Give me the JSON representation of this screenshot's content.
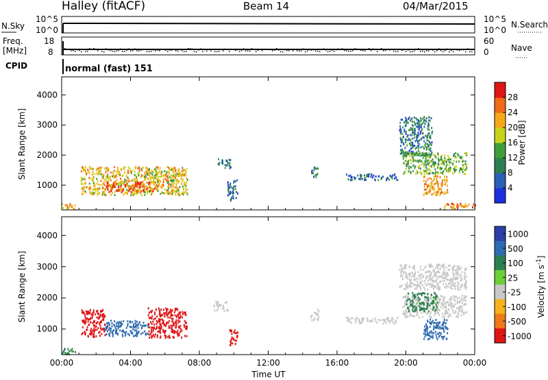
{
  "header": {
    "station": "Halley (fitACF)",
    "beam": "Beam 14",
    "date": "04/Mar/2015"
  },
  "strips": {
    "nsky_label": "N.Sky",
    "nsky_ticks": [
      "10^5",
      "10^0"
    ],
    "nsearch_label": "N.Search",
    "nsearch_ticks": [
      "10^5",
      "10^0"
    ],
    "freq_label": "Freq.",
    "freq_unit": "[MHz]",
    "freq_ticks": [
      "18",
      "8"
    ],
    "nave_label": "Nave",
    "nave_ticks": [
      "60",
      "0"
    ],
    "cpid_label": "CPID",
    "cpid_value": "normal (fast) 151"
  },
  "chart_data": [
    {
      "type": "heatmap",
      "panel": "power",
      "ylabel": "Slant Range [km]",
      "xlabel": "Time UT",
      "x_ticks": [
        "00:00",
        "04:00",
        "08:00",
        "12:00",
        "16:00",
        "20:00",
        "00:00"
      ],
      "y_ticks": [
        "1000",
        "2000",
        "3000",
        "4000"
      ],
      "y_ticks_values": [
        1000,
        2000,
        3000,
        4000
      ],
      "ylim": [
        180,
        4600
      ],
      "colorbar": {
        "label": "Power [dB]",
        "ticks": [
          "4",
          "8",
          "12",
          "16",
          "20",
          "24",
          "28"
        ],
        "ticks_values": [
          4,
          8,
          12,
          16,
          20,
          24,
          28
        ],
        "range": [
          0,
          32
        ],
        "colors": [
          "#1b2fe0",
          "#2c5fb7",
          "#2e7f4f",
          "#3f9e3a",
          "#c9d21b",
          "#f5a91a",
          "#f06a18",
          "#e01515"
        ]
      },
      "regions": [
        {
          "t0": 0.0,
          "t1": 0.8,
          "r0": 220,
          "r1": 420,
          "level": 22
        },
        {
          "t0": 1.1,
          "t1": 7.3,
          "r0": 700,
          "r1": 1650,
          "level": 20
        },
        {
          "t0": 2.5,
          "t1": 5.5,
          "r0": 800,
          "r1": 1150,
          "level": 26
        },
        {
          "t0": 9.0,
          "t1": 9.8,
          "r0": 1600,
          "r1": 1900,
          "level": 9
        },
        {
          "t0": 9.6,
          "t1": 10.2,
          "r0": 500,
          "r1": 1200,
          "level": 8
        },
        {
          "t0": 14.4,
          "t1": 14.9,
          "r0": 1300,
          "r1": 1650,
          "level": 8
        },
        {
          "t0": 16.5,
          "t1": 19.5,
          "r0": 1200,
          "r1": 1400,
          "level": 7
        },
        {
          "t0": 19.6,
          "t1": 21.5,
          "r0": 2000,
          "r1": 3300,
          "level": 9
        },
        {
          "t0": 19.8,
          "t1": 23.5,
          "r0": 1400,
          "r1": 2100,
          "level": 14
        },
        {
          "t0": 21.0,
          "t1": 22.4,
          "r0": 700,
          "r1": 1350,
          "level": 22
        },
        {
          "t0": 22.2,
          "t1": 24.0,
          "r0": 220,
          "r1": 420,
          "level": 24
        }
      ]
    },
    {
      "type": "heatmap",
      "panel": "velocity",
      "ylabel": "Slant Range [km]",
      "xlabel": "Time UT",
      "x_ticks": [
        "00:00",
        "04:00",
        "08:00",
        "12:00",
        "16:00",
        "20:00",
        "00:00"
      ],
      "y_ticks": [
        "1000",
        "2000",
        "3000",
        "4000"
      ],
      "y_ticks_values": [
        1000,
        2000,
        3000,
        4000
      ],
      "ylim": [
        180,
        4600
      ],
      "colorbar": {
        "label": "Velocity [m s^-1]",
        "ticks": [
          "1000",
          "500",
          "100",
          "25",
          "-25",
          "-100",
          "-500",
          "-1000"
        ],
        "colors": [
          "#2b3fa8",
          "#2f6bb0",
          "#2e7f4f",
          "#6ccf3a",
          "#c8c8c8",
          "#f5b21a",
          "#f07a18",
          "#e01515"
        ]
      },
      "regions": [
        {
          "t0": 0.0,
          "t1": 0.8,
          "r0": 220,
          "r1": 420,
          "v": 100
        },
        {
          "t0": 1.1,
          "t1": 2.5,
          "r0": 750,
          "r1": 1650,
          "v": -500
        },
        {
          "t0": 2.5,
          "t1": 5.0,
          "r0": 800,
          "r1": 1300,
          "v": 500
        },
        {
          "t0": 5.0,
          "t1": 7.3,
          "r0": 750,
          "r1": 1700,
          "v": -500
        },
        {
          "t0": 9.7,
          "t1": 10.2,
          "r0": 500,
          "r1": 1000,
          "v": -500
        },
        {
          "t0": 8.8,
          "t1": 9.7,
          "r0": 1600,
          "r1": 1900,
          "v": 0
        },
        {
          "t0": 14.4,
          "t1": 14.9,
          "r0": 1300,
          "r1": 1650,
          "v": 0
        },
        {
          "t0": 16.5,
          "t1": 19.5,
          "r0": 1200,
          "r1": 1400,
          "v": 0
        },
        {
          "t0": 19.6,
          "t1": 23.5,
          "r0": 2300,
          "r1": 3100,
          "v": 0
        },
        {
          "t0": 19.8,
          "t1": 23.5,
          "r0": 1400,
          "r1": 2100,
          "v": 0
        },
        {
          "t0": 20.0,
          "t1": 21.8,
          "r0": 1600,
          "r1": 2200,
          "v": 100
        },
        {
          "t0": 21.0,
          "t1": 22.4,
          "r0": 700,
          "r1": 1350,
          "v": 500
        }
      ]
    }
  ]
}
